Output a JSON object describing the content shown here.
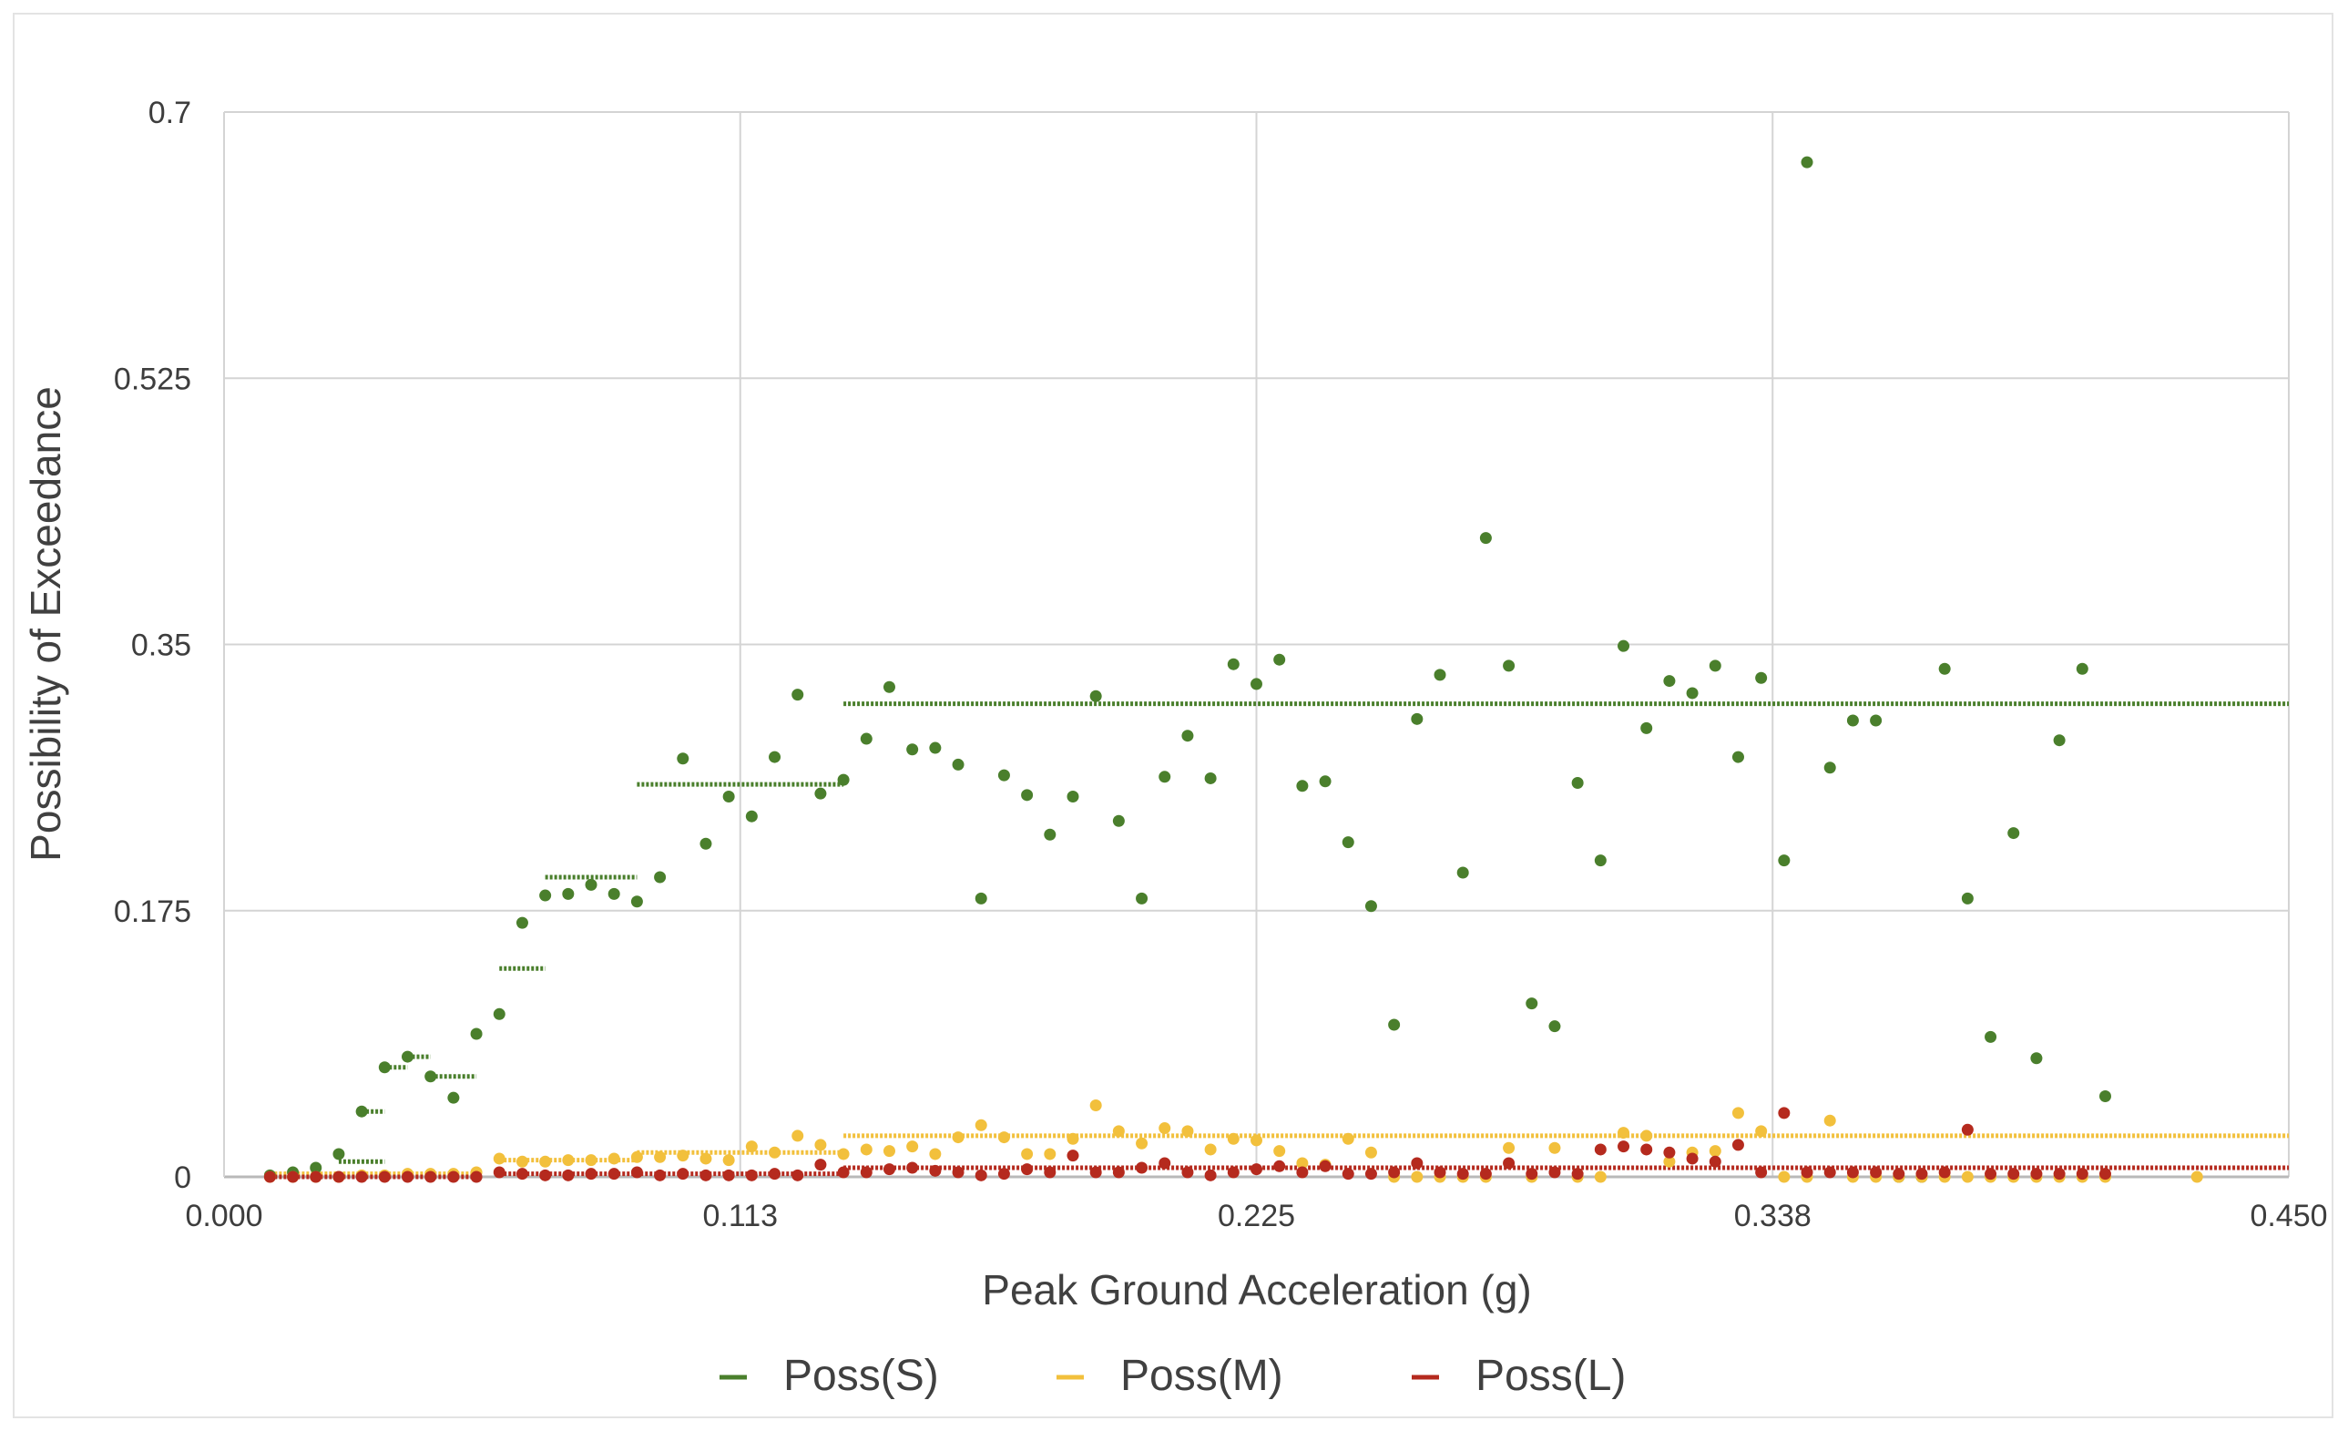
{
  "chart_data": {
    "type": "scatter",
    "title": "",
    "xlabel": "Peak Ground Acceleration (g)",
    "ylabel": "Possibility of Exceedance",
    "xlim": [
      0,
      0.45
    ],
    "ylim": [
      0,
      0.7
    ],
    "x_ticks": [
      "0.000",
      "0.113",
      "0.225",
      "0.338",
      "0.450"
    ],
    "y_ticks": [
      "0",
      "0.175",
      "0.35",
      "0.525",
      "0.7"
    ],
    "grid": true,
    "legend_position": "bottom",
    "series": [
      {
        "name": "Poss(S)",
        "color": "#4a7f2c",
        "points": [
          [
            0.01,
            0.001
          ],
          [
            0.015,
            0.003
          ],
          [
            0.02,
            0.006
          ],
          [
            0.025,
            0.015
          ],
          [
            0.03,
            0.043
          ],
          [
            0.035,
            0.072
          ],
          [
            0.04,
            0.079
          ],
          [
            0.045,
            0.066
          ],
          [
            0.05,
            0.052
          ],
          [
            0.055,
            0.094
          ],
          [
            0.06,
            0.107
          ],
          [
            0.065,
            0.167
          ],
          [
            0.07,
            0.185
          ],
          [
            0.075,
            0.186
          ],
          [
            0.08,
            0.192
          ],
          [
            0.085,
            0.186
          ],
          [
            0.09,
            0.181
          ],
          [
            0.095,
            0.197
          ],
          [
            0.1,
            0.275
          ],
          [
            0.105,
            0.219
          ],
          [
            0.11,
            0.25
          ],
          [
            0.115,
            0.237
          ],
          [
            0.12,
            0.276
          ],
          [
            0.125,
            0.317
          ],
          [
            0.13,
            0.252
          ],
          [
            0.135,
            0.261
          ],
          [
            0.14,
            0.288
          ],
          [
            0.145,
            0.322
          ],
          [
            0.15,
            0.281
          ],
          [
            0.155,
            0.282
          ],
          [
            0.16,
            0.271
          ],
          [
            0.165,
            0.183
          ],
          [
            0.17,
            0.264
          ],
          [
            0.175,
            0.251
          ],
          [
            0.18,
            0.225
          ],
          [
            0.185,
            0.25
          ],
          [
            0.19,
            0.316
          ],
          [
            0.195,
            0.234
          ],
          [
            0.2,
            0.183
          ],
          [
            0.205,
            0.263
          ],
          [
            0.21,
            0.29
          ],
          [
            0.215,
            0.262
          ],
          [
            0.22,
            0.337
          ],
          [
            0.225,
            0.324
          ],
          [
            0.23,
            0.34
          ],
          [
            0.235,
            0.257
          ],
          [
            0.24,
            0.26
          ],
          [
            0.245,
            0.22
          ],
          [
            0.25,
            0.178
          ],
          [
            0.255,
            0.1
          ],
          [
            0.26,
            0.301
          ],
          [
            0.265,
            0.33
          ],
          [
            0.27,
            0.2
          ],
          [
            0.275,
            0.42
          ],
          [
            0.28,
            0.336
          ],
          [
            0.285,
            0.114
          ],
          [
            0.29,
            0.099
          ],
          [
            0.295,
            0.259
          ],
          [
            0.3,
            0.208
          ],
          [
            0.305,
            0.349
          ],
          [
            0.31,
            0.295
          ],
          [
            0.315,
            0.326
          ],
          [
            0.32,
            0.318
          ],
          [
            0.325,
            0.336
          ],
          [
            0.33,
            0.276
          ],
          [
            0.335,
            0.328
          ],
          [
            0.34,
            0.208
          ],
          [
            0.345,
            0.667
          ],
          [
            0.35,
            0.269
          ],
          [
            0.355,
            0.3
          ],
          [
            0.36,
            0.3
          ],
          [
            0.365,
            0.0
          ],
          [
            0.37,
            0.0
          ],
          [
            0.375,
            0.334
          ],
          [
            0.38,
            0.183
          ],
          [
            0.385,
            0.092
          ],
          [
            0.39,
            0.226
          ],
          [
            0.395,
            0.078
          ],
          [
            0.4,
            0.287
          ],
          [
            0.405,
            0.334
          ],
          [
            0.41,
            0.053
          ]
        ],
        "steps": [
          [
            0.025,
            0.035,
            0.01
          ],
          [
            0.03,
            0.035,
            0.043
          ],
          [
            0.035,
            0.04,
            0.072
          ],
          [
            0.04,
            0.045,
            0.079
          ],
          [
            0.045,
            0.055,
            0.066
          ],
          [
            0.06,
            0.07,
            0.137
          ],
          [
            0.07,
            0.09,
            0.197
          ],
          [
            0.09,
            0.135,
            0.258
          ],
          [
            0.135,
            0.45,
            0.311
          ]
        ]
      },
      {
        "name": "Poss(M)",
        "color": "#f2c03c",
        "points": [
          [
            0.01,
            0.0
          ],
          [
            0.015,
            0.0
          ],
          [
            0.02,
            0.0
          ],
          [
            0.025,
            0.0
          ],
          [
            0.03,
            0.001
          ],
          [
            0.035,
            0.001
          ],
          [
            0.04,
            0.002
          ],
          [
            0.045,
            0.002
          ],
          [
            0.05,
            0.002
          ],
          [
            0.055,
            0.003
          ],
          [
            0.06,
            0.012
          ],
          [
            0.065,
            0.01
          ],
          [
            0.07,
            0.01
          ],
          [
            0.075,
            0.011
          ],
          [
            0.08,
            0.011
          ],
          [
            0.085,
            0.012
          ],
          [
            0.09,
            0.013
          ],
          [
            0.095,
            0.013
          ],
          [
            0.1,
            0.014
          ],
          [
            0.105,
            0.012
          ],
          [
            0.11,
            0.011
          ],
          [
            0.115,
            0.02
          ],
          [
            0.12,
            0.016
          ],
          [
            0.125,
            0.027
          ],
          [
            0.13,
            0.021
          ],
          [
            0.135,
            0.015
          ],
          [
            0.14,
            0.018
          ],
          [
            0.145,
            0.017
          ],
          [
            0.15,
            0.02
          ],
          [
            0.155,
            0.015
          ],
          [
            0.16,
            0.026
          ],
          [
            0.165,
            0.034
          ],
          [
            0.17,
            0.026
          ],
          [
            0.175,
            0.015
          ],
          [
            0.18,
            0.015
          ],
          [
            0.185,
            0.025
          ],
          [
            0.19,
            0.047
          ],
          [
            0.195,
            0.03
          ],
          [
            0.2,
            0.022
          ],
          [
            0.205,
            0.032
          ],
          [
            0.21,
            0.03
          ],
          [
            0.215,
            0.018
          ],
          [
            0.22,
            0.025
          ],
          [
            0.225,
            0.024
          ],
          [
            0.23,
            0.017
          ],
          [
            0.235,
            0.009
          ],
          [
            0.24,
            0.008
          ],
          [
            0.245,
            0.025
          ],
          [
            0.25,
            0.016
          ],
          [
            0.255,
            0.0
          ],
          [
            0.26,
            0.0
          ],
          [
            0.265,
            0.0
          ],
          [
            0.27,
            0.0
          ],
          [
            0.275,
            0.0
          ],
          [
            0.28,
            0.019
          ],
          [
            0.285,
            0.0
          ],
          [
            0.29,
            0.019
          ],
          [
            0.295,
            0.0
          ],
          [
            0.3,
            0.0
          ],
          [
            0.305,
            0.029
          ],
          [
            0.31,
            0.027
          ],
          [
            0.315,
            0.01
          ],
          [
            0.32,
            0.016
          ],
          [
            0.325,
            0.017
          ],
          [
            0.33,
            0.042
          ],
          [
            0.335,
            0.03
          ],
          [
            0.34,
            0.0
          ],
          [
            0.345,
            0.0
          ],
          [
            0.35,
            0.037
          ],
          [
            0.355,
            0.0
          ],
          [
            0.36,
            0.0
          ],
          [
            0.365,
            0.0
          ],
          [
            0.37,
            0.0
          ],
          [
            0.375,
            0.0
          ],
          [
            0.38,
            0.0
          ],
          [
            0.385,
            0.0
          ],
          [
            0.39,
            0.0
          ],
          [
            0.395,
            0.0
          ],
          [
            0.4,
            0.0
          ],
          [
            0.405,
            0.0
          ],
          [
            0.41,
            0.0
          ],
          [
            0.43,
            0.0
          ]
        ],
        "steps": [
          [
            0.01,
            0.055,
            0.002
          ],
          [
            0.06,
            0.09,
            0.011
          ],
          [
            0.09,
            0.135,
            0.016
          ],
          [
            0.135,
            0.45,
            0.027
          ]
        ]
      },
      {
        "name": "Poss(L)",
        "color": "#b52a1e",
        "points": [
          [
            0.01,
            0.0
          ],
          [
            0.015,
            0.0
          ],
          [
            0.02,
            0.0
          ],
          [
            0.025,
            0.0
          ],
          [
            0.03,
            0.0
          ],
          [
            0.035,
            0.0
          ],
          [
            0.04,
            0.0
          ],
          [
            0.045,
            0.0
          ],
          [
            0.05,
            0.0
          ],
          [
            0.055,
            0.0
          ],
          [
            0.06,
            0.003
          ],
          [
            0.065,
            0.002
          ],
          [
            0.07,
            0.001
          ],
          [
            0.075,
            0.001
          ],
          [
            0.08,
            0.002
          ],
          [
            0.085,
            0.002
          ],
          [
            0.09,
            0.003
          ],
          [
            0.095,
            0.001
          ],
          [
            0.1,
            0.002
          ],
          [
            0.105,
            0.001
          ],
          [
            0.11,
            0.001
          ],
          [
            0.115,
            0.001
          ],
          [
            0.12,
            0.002
          ],
          [
            0.125,
            0.001
          ],
          [
            0.13,
            0.008
          ],
          [
            0.135,
            0.003
          ],
          [
            0.14,
            0.003
          ],
          [
            0.145,
            0.005
          ],
          [
            0.15,
            0.006
          ],
          [
            0.155,
            0.004
          ],
          [
            0.16,
            0.003
          ],
          [
            0.165,
            0.001
          ],
          [
            0.17,
            0.002
          ],
          [
            0.175,
            0.005
          ],
          [
            0.18,
            0.003
          ],
          [
            0.185,
            0.014
          ],
          [
            0.19,
            0.003
          ],
          [
            0.195,
            0.003
          ],
          [
            0.2,
            0.006
          ],
          [
            0.205,
            0.009
          ],
          [
            0.21,
            0.003
          ],
          [
            0.215,
            0.001
          ],
          [
            0.22,
            0.003
          ],
          [
            0.225,
            0.005
          ],
          [
            0.23,
            0.007
          ],
          [
            0.235,
            0.003
          ],
          [
            0.24,
            0.007
          ],
          [
            0.245,
            0.002
          ],
          [
            0.25,
            0.002
          ],
          [
            0.255,
            0.003
          ],
          [
            0.26,
            0.009
          ],
          [
            0.265,
            0.003
          ],
          [
            0.27,
            0.002
          ],
          [
            0.275,
            0.002
          ],
          [
            0.28,
            0.009
          ],
          [
            0.285,
            0.002
          ],
          [
            0.29,
            0.003
          ],
          [
            0.295,
            0.002
          ],
          [
            0.3,
            0.018
          ],
          [
            0.305,
            0.02
          ],
          [
            0.31,
            0.018
          ],
          [
            0.315,
            0.016
          ],
          [
            0.32,
            0.012
          ],
          [
            0.325,
            0.01
          ],
          [
            0.33,
            0.021
          ],
          [
            0.335,
            0.003
          ],
          [
            0.34,
            0.042
          ],
          [
            0.345,
            0.003
          ],
          [
            0.35,
            0.003
          ],
          [
            0.355,
            0.003
          ],
          [
            0.36,
            0.003
          ],
          [
            0.365,
            0.002
          ],
          [
            0.37,
            0.002
          ],
          [
            0.375,
            0.003
          ],
          [
            0.38,
            0.031
          ],
          [
            0.385,
            0.002
          ],
          [
            0.39,
            0.002
          ],
          [
            0.395,
            0.002
          ],
          [
            0.4,
            0.002
          ],
          [
            0.405,
            0.002
          ],
          [
            0.41,
            0.002
          ]
        ],
        "steps": [
          [
            0.01,
            0.055,
            0.0
          ],
          [
            0.06,
            0.135,
            0.002
          ],
          [
            0.135,
            0.45,
            0.006
          ]
        ]
      }
    ]
  }
}
